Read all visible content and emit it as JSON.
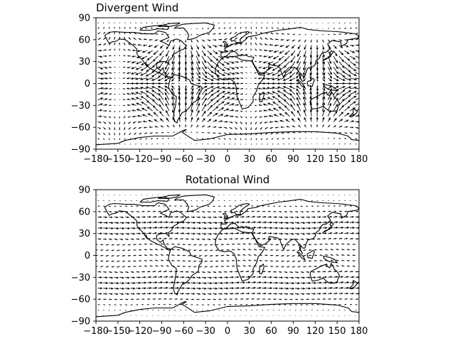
{
  "chart_data": [
    {
      "type": "quiver",
      "title": "Divergent Wind",
      "title_align": "left",
      "projection": "plate carree with coastlines",
      "xlim": [
        -180,
        180
      ],
      "ylim": [
        -90,
        90
      ],
      "x_ticks": [
        -180,
        -150,
        -120,
        -90,
        -60,
        -30,
        0,
        30,
        60,
        90,
        120,
        150,
        180
      ],
      "y_ticks": [
        -90,
        -60,
        -30,
        0,
        30,
        60,
        90
      ],
      "x_tick_labels": [
        "−180",
        "−150",
        "−120",
        "−90",
        "−60",
        "−30",
        "0",
        "30",
        "60",
        "90",
        "120",
        "150",
        "180"
      ],
      "y_tick_labels": [
        "−90",
        "−60",
        "−30",
        "0",
        "30",
        "60",
        "90"
      ],
      "grid": false
    },
    {
      "type": "quiver",
      "title": "Rotational Wind",
      "title_align": "center",
      "projection": "plate carree with coastlines",
      "xlim": [
        -180,
        180
      ],
      "ylim": [
        -90,
        90
      ],
      "x_ticks": [
        -180,
        -150,
        -120,
        -90,
        -60,
        -30,
        0,
        30,
        60,
        90,
        120,
        150,
        180
      ],
      "y_ticks": [
        -90,
        -60,
        -30,
        0,
        30,
        60,
        90
      ],
      "x_tick_labels": [
        "−180",
        "−150",
        "−120",
        "−90",
        "−60",
        "−30",
        "0",
        "30",
        "60",
        "90",
        "120",
        "150",
        "180"
      ],
      "y_tick_labels": [
        "−90",
        "−60",
        "−30",
        "0",
        "30",
        "60",
        "90"
      ],
      "grid": false
    }
  ],
  "colors": {
    "axes": "#000000",
    "vectors": "#000000",
    "coastline": "#000000"
  }
}
